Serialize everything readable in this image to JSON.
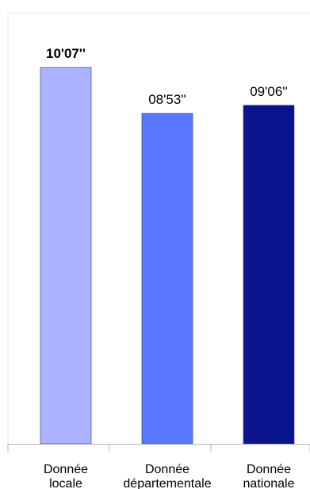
{
  "chart_data": {
    "type": "bar",
    "categories": [
      [
        "Donnée",
        "locale"
      ],
      [
        "Donnée",
        "départementale"
      ],
      [
        "Donnée",
        "nationale"
      ]
    ],
    "values": [
      607,
      533,
      546
    ],
    "value_labels": [
      "10'07''",
      "08'53''",
      "09'06''"
    ],
    "value_label_bold": [
      true,
      false,
      false
    ],
    "colors": [
      "#aab4ff",
      "#5a78ff",
      "#0a148c"
    ],
    "ylim": [
      0,
      620
    ],
    "grid": false,
    "legend": "none"
  }
}
